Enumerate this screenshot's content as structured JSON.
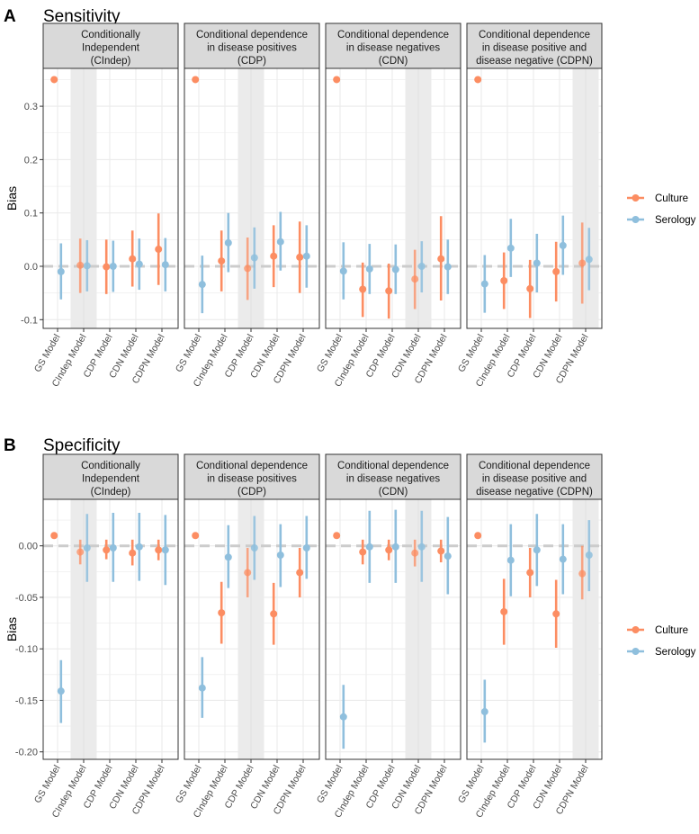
{
  "chart_data": [
    {
      "type": "scatter",
      "panel_letter": "A",
      "title": "Sensitivity",
      "ylabel": "Bias",
      "ylim": [
        -0.116,
        0.369
      ],
      "yticks": [
        -0.1,
        0.0,
        0.1,
        0.2,
        0.3
      ],
      "ytick_labels": [
        "-0.1",
        "0.0",
        "0.1",
        "0.2",
        "0.3"
      ],
      "reference_line": 0,
      "categories": [
        "GS Model",
        "CIndep Model",
        "CDP Model",
        "CDN Model",
        "CDPN Model"
      ],
      "legend": {
        "placement": "right",
        "entries": [
          "Culture",
          "Serology"
        ]
      },
      "facets": [
        {
          "label": [
            "Conditionally",
            "Independent",
            "(CIndep)"
          ],
          "highlight": "CIndep Model",
          "series": [
            {
              "name": "Culture",
              "est": [
                0.35,
                0.002,
                -0.001,
                0.014,
                0.032
              ],
              "lo": [
                null,
                -0.05,
                -0.052,
                -0.038,
                -0.035
              ],
              "hi": [
                null,
                0.052,
                0.05,
                0.067,
                0.099
              ]
            },
            {
              "name": "Serology",
              "est": [
                -0.01,
                0.001,
                0.0,
                0.004,
                0.003
              ],
              "lo": [
                -0.062,
                -0.047,
                -0.048,
                -0.044,
                -0.047
              ],
              "hi": [
                0.043,
                0.049,
                0.048,
                0.052,
                0.053
              ]
            }
          ]
        },
        {
          "label": [
            "Conditional dependence",
            "in disease positives",
            "(CDP)"
          ],
          "highlight": "CDP Model",
          "series": [
            {
              "name": "Culture",
              "est": [
                0.35,
                0.01,
                -0.004,
                0.019,
                0.017
              ],
              "lo": [
                null,
                -0.047,
                -0.063,
                -0.039,
                -0.05
              ],
              "hi": [
                null,
                0.067,
                0.054,
                0.077,
                0.084
              ]
            },
            {
              "name": "Serology",
              "est": [
                -0.034,
                0.044,
                0.016,
                0.046,
                0.019
              ],
              "lo": [
                -0.088,
                -0.011,
                -0.042,
                -0.008,
                -0.04
              ],
              "hi": [
                0.02,
                0.1,
                0.073,
                0.102,
                0.077
              ]
            }
          ]
        },
        {
          "label": [
            "Conditional dependence",
            "in disease negatives",
            "(CDN)"
          ],
          "highlight": "CDN Model",
          "series": [
            {
              "name": "Culture",
              "est": [
                0.35,
                -0.043,
                -0.046,
                -0.024,
                0.014
              ],
              "lo": [
                null,
                -0.095,
                -0.098,
                -0.08,
                -0.064
              ],
              "hi": [
                null,
                0.007,
                0.005,
                0.031,
                0.094
              ]
            },
            {
              "name": "Serology",
              "est": [
                -0.009,
                -0.005,
                -0.006,
                0.0,
                -0.001
              ],
              "lo": [
                -0.062,
                -0.052,
                -0.052,
                -0.049,
                -0.052
              ],
              "hi": [
                0.045,
                0.042,
                0.041,
                0.047,
                0.05
              ]
            }
          ]
        },
        {
          "label": [
            "Conditional dependence",
            "in disease positive and",
            "disease negative (CDPN)"
          ],
          "highlight": "CDPN Model",
          "series": [
            {
              "name": "Culture",
              "est": [
                0.35,
                -0.027,
                -0.042,
                -0.01,
                0.006
              ],
              "lo": [
                null,
                -0.08,
                -0.097,
                -0.066,
                -0.07
              ],
              "hi": [
                null,
                0.026,
                0.012,
                0.046,
                0.082
              ]
            },
            {
              "name": "Serology",
              "est": [
                -0.033,
                0.034,
                0.006,
                0.039,
                0.013
              ],
              "lo": [
                -0.087,
                -0.02,
                -0.049,
                -0.016,
                -0.045
              ],
              "hi": [
                0.021,
                0.089,
                0.061,
                0.095,
                0.072
              ]
            }
          ]
        }
      ]
    },
    {
      "type": "scatter",
      "panel_letter": "B",
      "title": "Specificity",
      "ylabel": "Bias",
      "ylim": [
        -0.208,
        0.045
      ],
      "yticks": [
        -0.2,
        -0.15,
        -0.1,
        -0.05,
        0.0
      ],
      "ytick_labels": [
        "-0.20",
        "-0.15",
        "-0.10",
        "-0.05",
        "0.00"
      ],
      "reference_line": 0,
      "categories": [
        "GS Model",
        "CIndep Model",
        "CDP Model",
        "CDN Model",
        "CDPN Model"
      ],
      "legend": {
        "placement": "right",
        "entries": [
          "Culture",
          "Serology"
        ]
      },
      "facets": [
        {
          "label": [
            "Conditionally",
            "Independent",
            "(CIndep)"
          ],
          "highlight": "CIndep Model",
          "series": [
            {
              "name": "Culture",
              "est": [
                0.01,
                -0.006,
                -0.004,
                -0.007,
                -0.004
              ],
              "lo": [
                null,
                -0.018,
                -0.013,
                -0.019,
                -0.014
              ],
              "hi": [
                null,
                0.006,
                0.006,
                0.006,
                0.006
              ]
            },
            {
              "name": "Serology",
              "est": [
                -0.141,
                -0.002,
                -0.002,
                -0.001,
                -0.004
              ],
              "lo": [
                -0.172,
                -0.035,
                -0.035,
                -0.034,
                -0.038
              ],
              "hi": [
                -0.111,
                0.031,
                0.032,
                0.032,
                0.03
              ]
            }
          ]
        },
        {
          "label": [
            "Conditional dependence",
            "in disease positives",
            "(CDP)"
          ],
          "highlight": "CDP Model",
          "series": [
            {
              "name": "Culture",
              "est": [
                0.01,
                -0.065,
                -0.026,
                -0.066,
                -0.026
              ],
              "lo": [
                null,
                -0.095,
                -0.05,
                -0.096,
                -0.05
              ],
              "hi": [
                null,
                -0.035,
                -0.002,
                -0.036,
                -0.002
              ]
            },
            {
              "name": "Serology",
              "est": [
                -0.138,
                -0.011,
                -0.002,
                -0.009,
                -0.002
              ],
              "lo": [
                -0.167,
                -0.041,
                -0.033,
                -0.04,
                -0.032
              ],
              "hi": [
                -0.108,
                0.02,
                0.029,
                0.021,
                0.029
              ]
            }
          ]
        },
        {
          "label": [
            "Conditional dependence",
            "in disease negatives",
            "(CDN)"
          ],
          "highlight": "CDN Model",
          "series": [
            {
              "name": "Culture",
              "est": [
                0.01,
                -0.006,
                -0.004,
                -0.007,
                -0.005
              ],
              "lo": [
                null,
                -0.018,
                -0.014,
                -0.02,
                -0.016
              ],
              "hi": [
                null,
                0.006,
                0.006,
                0.006,
                0.006
              ]
            },
            {
              "name": "Serology",
              "est": [
                -0.166,
                -0.001,
                -0.001,
                -0.001,
                -0.01
              ],
              "lo": [
                -0.197,
                -0.036,
                -0.036,
                -0.035,
                -0.047
              ],
              "hi": [
                -0.135,
                0.034,
                0.035,
                0.034,
                0.028
              ]
            }
          ]
        },
        {
          "label": [
            "Conditional dependence",
            "in disease positive and",
            "disease negative (CDPN)"
          ],
          "highlight": "CDPN Model",
          "series": [
            {
              "name": "Culture",
              "est": [
                0.01,
                -0.064,
                -0.026,
                -0.066,
                -0.027
              ],
              "lo": [
                null,
                -0.096,
                -0.05,
                -0.099,
                -0.052
              ],
              "hi": [
                null,
                -0.032,
                -0.002,
                -0.033,
                0.0
              ]
            },
            {
              "name": "Serology",
              "est": [
                -0.161,
                -0.014,
                -0.004,
                -0.013,
                -0.009
              ],
              "lo": [
                -0.191,
                -0.049,
                -0.039,
                -0.047,
                -0.044
              ],
              "hi": [
                -0.13,
                0.021,
                0.031,
                0.021,
                0.025
              ]
            }
          ]
        }
      ]
    }
  ],
  "colors": {
    "Culture": "#FC8D62",
    "Serology": "#8FBFDD",
    "highlight_band": "#EBEBEB",
    "strip": "#D9D9D9",
    "grid": "#EBEBEB",
    "reference_line": "#CCCCCC"
  }
}
